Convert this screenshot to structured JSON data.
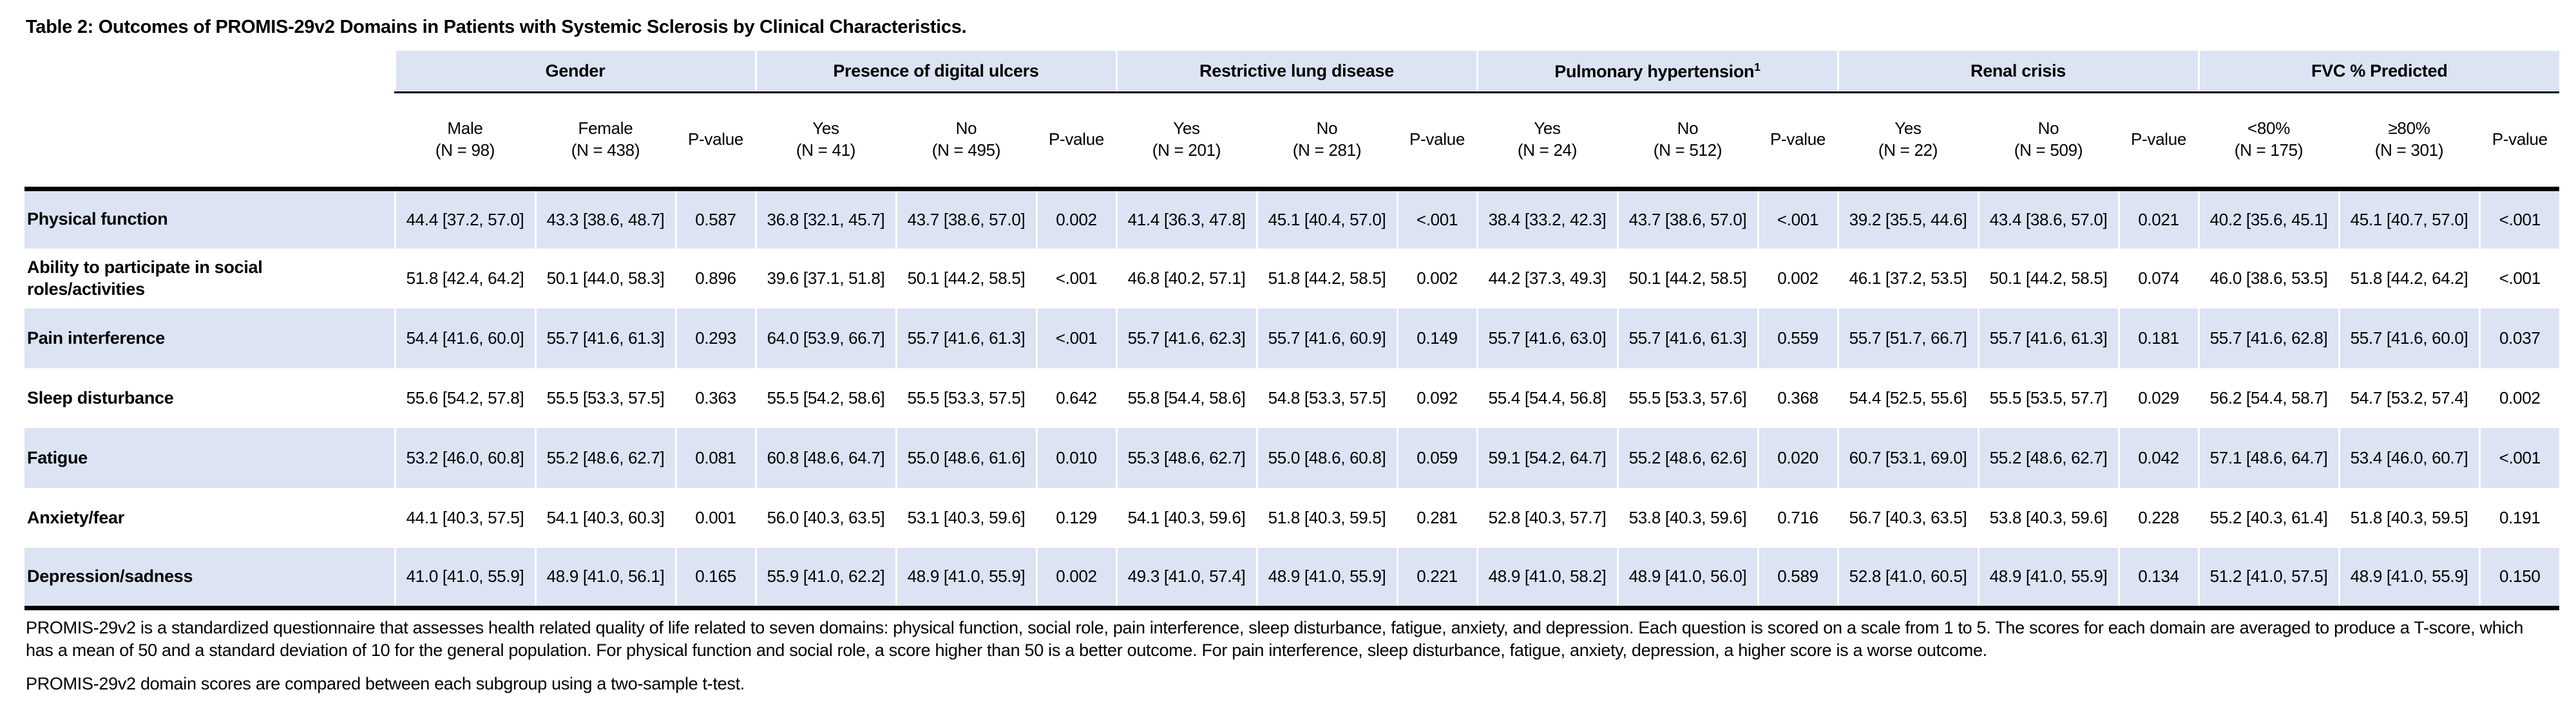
{
  "title": "Table 2: Outcomes of PROMIS-29v2 Domains in Patients with Systemic Sclerosis by Clinical Characteristics.",
  "table": {
    "groups": [
      {
        "label": "Gender",
        "sup": "",
        "sub": [
          {
            "line1": "Male",
            "line2": "(N = 98)"
          },
          {
            "line1": "Female",
            "line2": "(N = 438)"
          },
          {
            "line1": "P-value",
            "line2": ""
          }
        ]
      },
      {
        "label": "Presence of digital ulcers",
        "sup": "",
        "sub": [
          {
            "line1": "Yes",
            "line2": "(N = 41)"
          },
          {
            "line1": "No",
            "line2": "(N = 495)"
          },
          {
            "line1": "P-value",
            "line2": ""
          }
        ]
      },
      {
        "label": "Restrictive lung disease",
        "sup": "",
        "sub": [
          {
            "line1": "Yes",
            "line2": "(N = 201)"
          },
          {
            "line1": "No",
            "line2": "(N = 281)"
          },
          {
            "line1": "P-value",
            "line2": ""
          }
        ]
      },
      {
        "label": "Pulmonary hypertension",
        "sup": "1",
        "sub": [
          {
            "line1": "Yes",
            "line2": "(N = 24)"
          },
          {
            "line1": "No",
            "line2": "(N = 512)"
          },
          {
            "line1": "P-value",
            "line2": ""
          }
        ]
      },
      {
        "label": "Renal crisis",
        "sup": "",
        "sub": [
          {
            "line1": "Yes",
            "line2": "(N = 22)"
          },
          {
            "line1": "No",
            "line2": "(N = 509)"
          },
          {
            "line1": "P-value",
            "line2": ""
          }
        ]
      },
      {
        "label": "FVC % Predicted",
        "sup": "",
        "sub": [
          {
            "line1": "<80%",
            "line2": "(N = 175)"
          },
          {
            "line1": "≥80%",
            "line2": "(N = 301)"
          },
          {
            "line1": "P-value",
            "line2": ""
          }
        ]
      }
    ],
    "rows": [
      {
        "label": "Physical function",
        "cells": [
          "44.4 [37.2, 57.0]",
          "43.3 [38.6, 48.7]",
          "0.587",
          "36.8 [32.1, 45.7]",
          "43.7 [38.6, 57.0]",
          "0.002",
          "41.4 [36.3, 47.8]",
          "45.1 [40.4, 57.0]",
          "<.001",
          "38.4 [33.2, 42.3]",
          "43.7 [38.6, 57.0]",
          "<.001",
          "39.2 [35.5, 44.6]",
          "43.4 [38.6, 57.0]",
          "0.021",
          "40.2 [35.6, 45.1]",
          "45.1 [40.7, 57.0]",
          "<.001"
        ]
      },
      {
        "label": "Ability to participate in social roles/activities",
        "cells": [
          "51.8 [42.4, 64.2]",
          "50.1 [44.0, 58.3]",
          "0.896",
          "39.6 [37.1, 51.8]",
          "50.1 [44.2, 58.5]",
          "<.001",
          "46.8 [40.2, 57.1]",
          "51.8 [44.2, 58.5]",
          "0.002",
          "44.2 [37.3, 49.3]",
          "50.1 [44.2, 58.5]",
          "0.002",
          "46.1 [37.2, 53.5]",
          "50.1 [44.2, 58.5]",
          "0.074",
          "46.0 [38.6, 53.5]",
          "51.8 [44.2, 64.2]",
          "<.001"
        ]
      },
      {
        "label": "Pain interference",
        "cells": [
          "54.4 [41.6, 60.0]",
          "55.7 [41.6, 61.3]",
          "0.293",
          "64.0 [53.9, 66.7]",
          "55.7 [41.6, 61.3]",
          "<.001",
          "55.7 [41.6, 62.3]",
          "55.7 [41.6, 60.9]",
          "0.149",
          "55.7 [41.6, 63.0]",
          "55.7 [41.6, 61.3]",
          "0.559",
          "55.7 [51.7, 66.7]",
          "55.7 [41.6, 61.3]",
          "0.181",
          "55.7 [41.6, 62.8]",
          "55.7 [41.6, 60.0]",
          "0.037"
        ]
      },
      {
        "label": "Sleep disturbance",
        "cells": [
          "55.6 [54.2, 57.8]",
          "55.5 [53.3, 57.5]",
          "0.363",
          "55.5 [54.2, 58.6]",
          "55.5 [53.3, 57.5]",
          "0.642",
          "55.8 [54.4, 58.6]",
          "54.8 [53.3, 57.5]",
          "0.092",
          "55.4 [54.4, 56.8]",
          "55.5 [53.3, 57.6]",
          "0.368",
          "54.4 [52.5, 55.6]",
          "55.5 [53.5, 57.7]",
          "0.029",
          "56.2 [54.4, 58.7]",
          "54.7 [53.2, 57.4]",
          "0.002"
        ]
      },
      {
        "label": "Fatigue",
        "cells": [
          "53.2 [46.0, 60.8]",
          "55.2 [48.6, 62.7]",
          "0.081",
          "60.8 [48.6, 64.7]",
          "55.0 [48.6, 61.6]",
          "0.010",
          "55.3 [48.6, 62.7]",
          "55.0 [48.6, 60.8]",
          "0.059",
          "59.1 [54.2, 64.7]",
          "55.2 [48.6, 62.6]",
          "0.020",
          "60.7 [53.1, 69.0]",
          "55.2 [48.6, 62.7]",
          "0.042",
          "57.1 [48.6, 64.7]",
          "53.4 [46.0, 60.7]",
          "<.001"
        ]
      },
      {
        "label": "Anxiety/fear",
        "cells": [
          "44.1 [40.3, 57.5]",
          "54.1 [40.3, 60.3]",
          "0.001",
          "56.0 [40.3, 63.5]",
          "53.1 [40.3, 59.6]",
          "0.129",
          "54.1 [40.3, 59.6]",
          "51.8 [40.3, 59.5]",
          "0.281",
          "52.8 [40.3, 57.7]",
          "53.8 [40.3, 59.6]",
          "0.716",
          "56.7 [40.3, 63.5]",
          "53.8 [40.3, 59.6]",
          "0.228",
          "55.2 [40.3, 61.4]",
          "51.8 [40.3, 59.5]",
          "0.191"
        ]
      },
      {
        "label": "Depression/sadness",
        "cells": [
          "41.0 [41.0, 55.9]",
          "48.9 [41.0, 56.1]",
          "0.165",
          "55.9 [41.0, 62.2]",
          "48.9 [41.0, 55.9]",
          "0.002",
          "49.3 [41.0, 57.4]",
          "48.9 [41.0, 55.9]",
          "0.221",
          "48.9 [41.0, 58.2]",
          "48.9 [41.0, 56.0]",
          "0.589",
          "52.8 [41.0, 60.5]",
          "48.9 [41.0, 55.9]",
          "0.134",
          "51.2 [41.0, 57.5]",
          "48.9 [41.0, 55.9]",
          "0.150"
        ]
      }
    ]
  },
  "footnotes": [
    "PROMIS-29v2 is a standardized questionnaire that assesses health related quality of life related to seven domains: physical function, social role, pain interference, sleep disturbance, fatigue, anxiety, and depression. Each question is scored on a scale from 1 to 5. The scores for each domain are averaged to produce a T-score, which has a mean of 50 and a standard deviation of 10 for the general population. For physical function and social role, a score higher than 50 is a better outcome. For pain interference, sleep disturbance, fatigue, anxiety, depression, a higher score is a worse outcome.",
    "PROMIS-29v2 domain scores are compared between each subgroup using a two-sample t-test."
  ],
  "colors": {
    "band_blue": "#dce3f3",
    "rule_black": "#000000"
  }
}
